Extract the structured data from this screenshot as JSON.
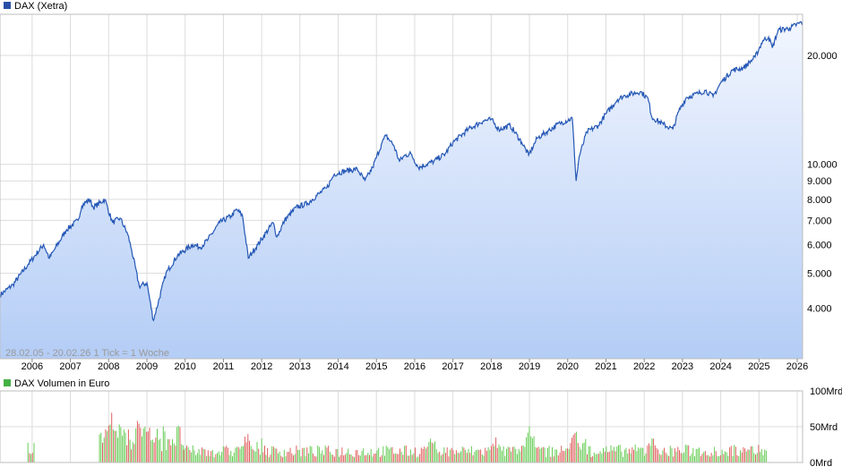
{
  "chart_data": [
    {
      "type": "area",
      "legend": "DAX (Xetra)",
      "line_color": "#2457b5",
      "fill_top": "#f2f6fe",
      "fill_bottom": "#b4cdf6",
      "legend_swatch_color": "#2850a8",
      "y_scale": "log",
      "ylim": [
        2900,
        26000
      ],
      "y_ticks": [
        4000,
        5000,
        6000,
        7000,
        8000,
        9000,
        10000,
        20000
      ],
      "y_tick_labels": [
        "4.000",
        "5.000",
        "6.000",
        "7.000",
        "8.000",
        "9.000",
        "10.000",
        "20.000"
      ],
      "x_range": [
        2005.16,
        2026.14
      ],
      "x_tick_labels": [
        "2006",
        "2007",
        "2008",
        "2009",
        "2010",
        "2011",
        "2012",
        "2013",
        "2014",
        "2015",
        "2016",
        "2017",
        "2018",
        "2019",
        "2020",
        "2021",
        "2022",
        "2023",
        "2024",
        "2025",
        "2026"
      ],
      "grid": true,
      "info": "28.02.05 - 20.02.26    1 Tick = 1 Woche",
      "x": [
        2005.16,
        2005.5,
        2005.9,
        2006.3,
        2006.45,
        2006.6,
        2006.9,
        2007.2,
        2007.3,
        2007.5,
        2007.6,
        2007.9,
        2008.1,
        2008.3,
        2008.5,
        2008.6,
        2008.8,
        2009.0,
        2009.17,
        2009.5,
        2009.8,
        2010.2,
        2010.4,
        2010.6,
        2010.9,
        2011.2,
        2011.35,
        2011.5,
        2011.65,
        2011.75,
        2011.9,
        2012.3,
        2012.4,
        2012.6,
        2012.9,
        2013.2,
        2013.5,
        2013.7,
        2013.9,
        2014.2,
        2014.5,
        2014.7,
        2014.9,
        2015.15,
        2015.25,
        2015.45,
        2015.6,
        2015.75,
        2015.9,
        2016.1,
        2016.5,
        2016.8,
        2017.0,
        2017.4,
        2017.8,
        2018.0,
        2018.2,
        2018.5,
        2018.8,
        2018.98,
        2019.2,
        2019.5,
        2019.8,
        2020.12,
        2020.22,
        2020.3,
        2020.5,
        2020.8,
        2021.0,
        2021.3,
        2021.5,
        2021.9,
        2022.1,
        2022.2,
        2022.5,
        2022.75,
        2022.9,
        2023.1,
        2023.4,
        2023.6,
        2023.8,
        2024.0,
        2024.3,
        2024.6,
        2024.9,
        2025.1,
        2025.25,
        2025.35,
        2025.5,
        2025.8,
        2026.14
      ],
      "values": [
        4350,
        4650,
        5300,
        6000,
        5500,
        5850,
        6600,
        7000,
        7700,
        8000,
        7600,
        8000,
        6900,
        7100,
        6400,
        5800,
        4600,
        4700,
        3700,
        5000,
        5600,
        6000,
        5900,
        6200,
        6900,
        7200,
        7500,
        7200,
        5500,
        5700,
        6000,
        6900,
        6300,
        7000,
        7600,
        7800,
        8300,
        8600,
        9400,
        9600,
        9700,
        9000,
        9800,
        11500,
        12000,
        11300,
        10200,
        10600,
        10700,
        9800,
        10200,
        10700,
        11500,
        12500,
        13200,
        13300,
        12500,
        12800,
        11500,
        10600,
        11800,
        12400,
        13000,
        13400,
        9000,
        10500,
        12300,
        12800,
        13800,
        15100,
        15500,
        15900,
        15200,
        13500,
        12900,
        12500,
        14000,
        15300,
        15700,
        16000,
        15400,
        16800,
        18200,
        18500,
        19800,
        22000,
        22500,
        21000,
        23500,
        23800,
        24800
      ]
    },
    {
      "type": "bar",
      "legend": "DAX Volumen in Euro",
      "legend_swatch_color": "#44b044",
      "up_color": "#66cc55",
      "down_color": "#e06060",
      "ylim": [
        0,
        100
      ],
      "y_tick_labels": [
        "100Mrd",
        "50Mrd",
        "0Mrd"
      ],
      "volume_segments": [
        {
          "from": 2005.88,
          "to": 2006.05,
          "level": 25
        },
        {
          "from": 2007.75,
          "to": 2008.58,
          "level": 40
        },
        {
          "from": 2008.58,
          "to": 2009.95,
          "level": 45
        },
        {
          "from": 2009.95,
          "to": 2011.55,
          "level": 20
        },
        {
          "from": 2011.55,
          "to": 2012.1,
          "level": 28
        },
        {
          "from": 2012.1,
          "to": 2020.1,
          "level": 20
        },
        {
          "from": 2020.1,
          "to": 2020.6,
          "level": 30
        },
        {
          "from": 2020.6,
          "to": 2025.2,
          "level": 21
        }
      ],
      "volume_peaks": [
        {
          "x": 2008.02,
          "level": 82
        },
        {
          "x": 2008.3,
          "level": 60
        },
        {
          "x": 2008.8,
          "level": 72
        },
        {
          "x": 2009.0,
          "level": 62
        },
        {
          "x": 2011.6,
          "level": 45
        },
        {
          "x": 2016.45,
          "level": 40
        },
        {
          "x": 2018.1,
          "level": 38
        },
        {
          "x": 2019.0,
          "level": 60
        },
        {
          "x": 2020.2,
          "level": 52
        },
        {
          "x": 2022.2,
          "level": 38
        },
        {
          "x": 2024.7,
          "level": 28
        }
      ]
    }
  ]
}
